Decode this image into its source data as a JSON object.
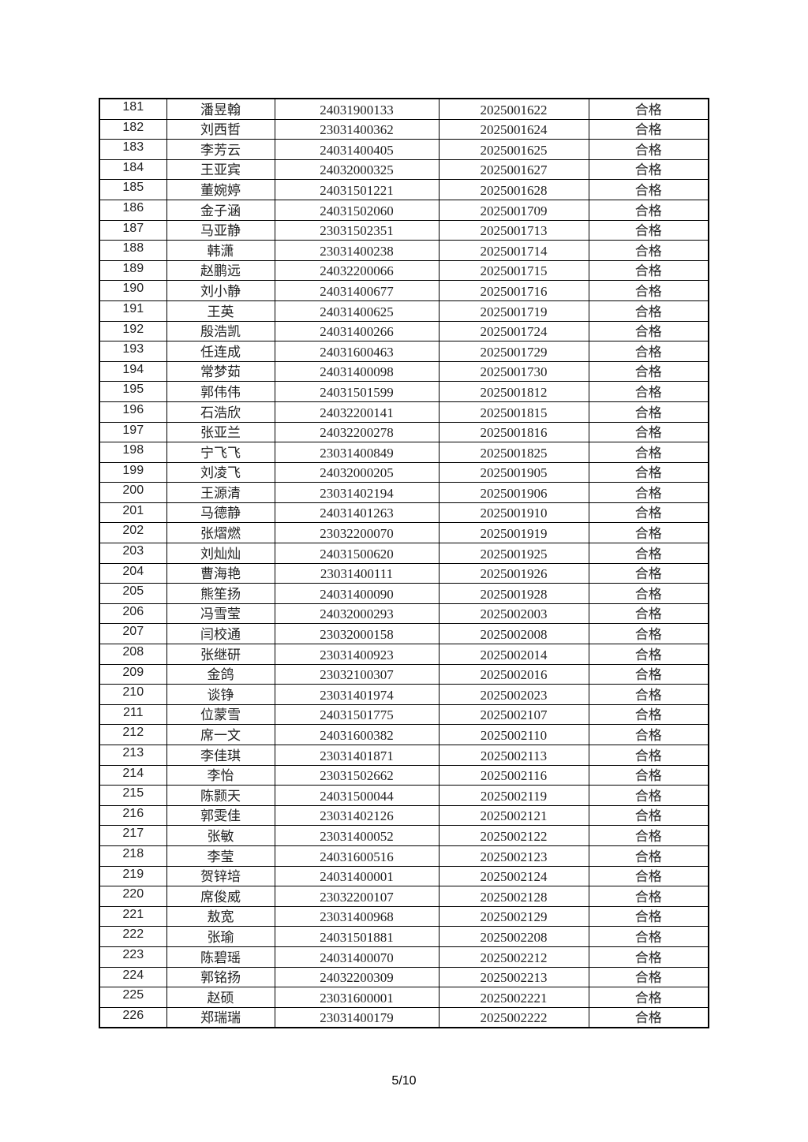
{
  "table": {
    "rows": [
      [
        "181",
        "潘昱翰",
        "24031900133",
        "2025001622",
        "合格"
      ],
      [
        "182",
        "刘西哲",
        "23031400362",
        "2025001624",
        "合格"
      ],
      [
        "183",
        "李芳云",
        "24031400405",
        "2025001625",
        "合格"
      ],
      [
        "184",
        "王亚宾",
        "24032000325",
        "2025001627",
        "合格"
      ],
      [
        "185",
        "董婉婷",
        "24031501221",
        "2025001628",
        "合格"
      ],
      [
        "186",
        "金子涵",
        "24031502060",
        "2025001709",
        "合格"
      ],
      [
        "187",
        "马亚静",
        "23031502351",
        "2025001713",
        "合格"
      ],
      [
        "188",
        "韩潇",
        "23031400238",
        "2025001714",
        "合格"
      ],
      [
        "189",
        "赵鹏远",
        "24032200066",
        "2025001715",
        "合格"
      ],
      [
        "190",
        "刘小静",
        "24031400677",
        "2025001716",
        "合格"
      ],
      [
        "191",
        "王英",
        "24031400625",
        "2025001719",
        "合格"
      ],
      [
        "192",
        "殷浩凯",
        "24031400266",
        "2025001724",
        "合格"
      ],
      [
        "193",
        "任连成",
        "24031600463",
        "2025001729",
        "合格"
      ],
      [
        "194",
        "常梦茹",
        "24031400098",
        "2025001730",
        "合格"
      ],
      [
        "195",
        "郭伟伟",
        "24031501599",
        "2025001812",
        "合格"
      ],
      [
        "196",
        "石浩欣",
        "24032200141",
        "2025001815",
        "合格"
      ],
      [
        "197",
        "张亚兰",
        "24032200278",
        "2025001816",
        "合格"
      ],
      [
        "198",
        "宁飞飞",
        "23031400849",
        "2025001825",
        "合格"
      ],
      [
        "199",
        "刘凌飞",
        "24032000205",
        "2025001905",
        "合格"
      ],
      [
        "200",
        "王源清",
        "23031402194",
        "2025001906",
        "合格"
      ],
      [
        "201",
        "马德静",
        "24031401263",
        "2025001910",
        "合格"
      ],
      [
        "202",
        "张熠燃",
        "23032200070",
        "2025001919",
        "合格"
      ],
      [
        "203",
        "刘灿灿",
        "24031500620",
        "2025001925",
        "合格"
      ],
      [
        "204",
        "曹海艳",
        "23031400111",
        "2025001926",
        "合格"
      ],
      [
        "205",
        "熊笙扬",
        "24031400090",
        "2025001928",
        "合格"
      ],
      [
        "206",
        "冯雪莹",
        "24032000293",
        "2025002003",
        "合格"
      ],
      [
        "207",
        "闫校通",
        "23032000158",
        "2025002008",
        "合格"
      ],
      [
        "208",
        "张继研",
        "23031400923",
        "2025002014",
        "合格"
      ],
      [
        "209",
        "金鸽",
        "23032100307",
        "2025002016",
        "合格"
      ],
      [
        "210",
        "谈铮",
        "23031401974",
        "2025002023",
        "合格"
      ],
      [
        "211",
        "位蒙雪",
        "24031501775",
        "2025002107",
        "合格"
      ],
      [
        "212",
        "席一文",
        "24031600382",
        "2025002110",
        "合格"
      ],
      [
        "213",
        "李佳琪",
        "23031401871",
        "2025002113",
        "合格"
      ],
      [
        "214",
        "李怡",
        "23031502662",
        "2025002116",
        "合格"
      ],
      [
        "215",
        "陈颢天",
        "24031500044",
        "2025002119",
        "合格"
      ],
      [
        "216",
        "郭雯佳",
        "23031402126",
        "2025002121",
        "合格"
      ],
      [
        "217",
        "张敏",
        "23031400052",
        "2025002122",
        "合格"
      ],
      [
        "218",
        "李莹",
        "24031600516",
        "2025002123",
        "合格"
      ],
      [
        "219",
        "贺锌培",
        "24031400001",
        "2025002124",
        "合格"
      ],
      [
        "220",
        "席俊威",
        "23032200107",
        "2025002128",
        "合格"
      ],
      [
        "221",
        "敖宽",
        "23031400968",
        "2025002129",
        "合格"
      ],
      [
        "222",
        "张瑜",
        "24031501881",
        "2025002208",
        "合格"
      ],
      [
        "223",
        "陈碧瑶",
        "24031400070",
        "2025002212",
        "合格"
      ],
      [
        "224",
        "郭铭扬",
        "24032200309",
        "2025002213",
        "合格"
      ],
      [
        "225",
        "赵硕",
        "23031600001",
        "2025002221",
        "合格"
      ],
      [
        "226",
        "郑瑞瑞",
        "23031400179",
        "2025002222",
        "合格"
      ]
    ]
  },
  "footer": {
    "page": "5/10"
  }
}
